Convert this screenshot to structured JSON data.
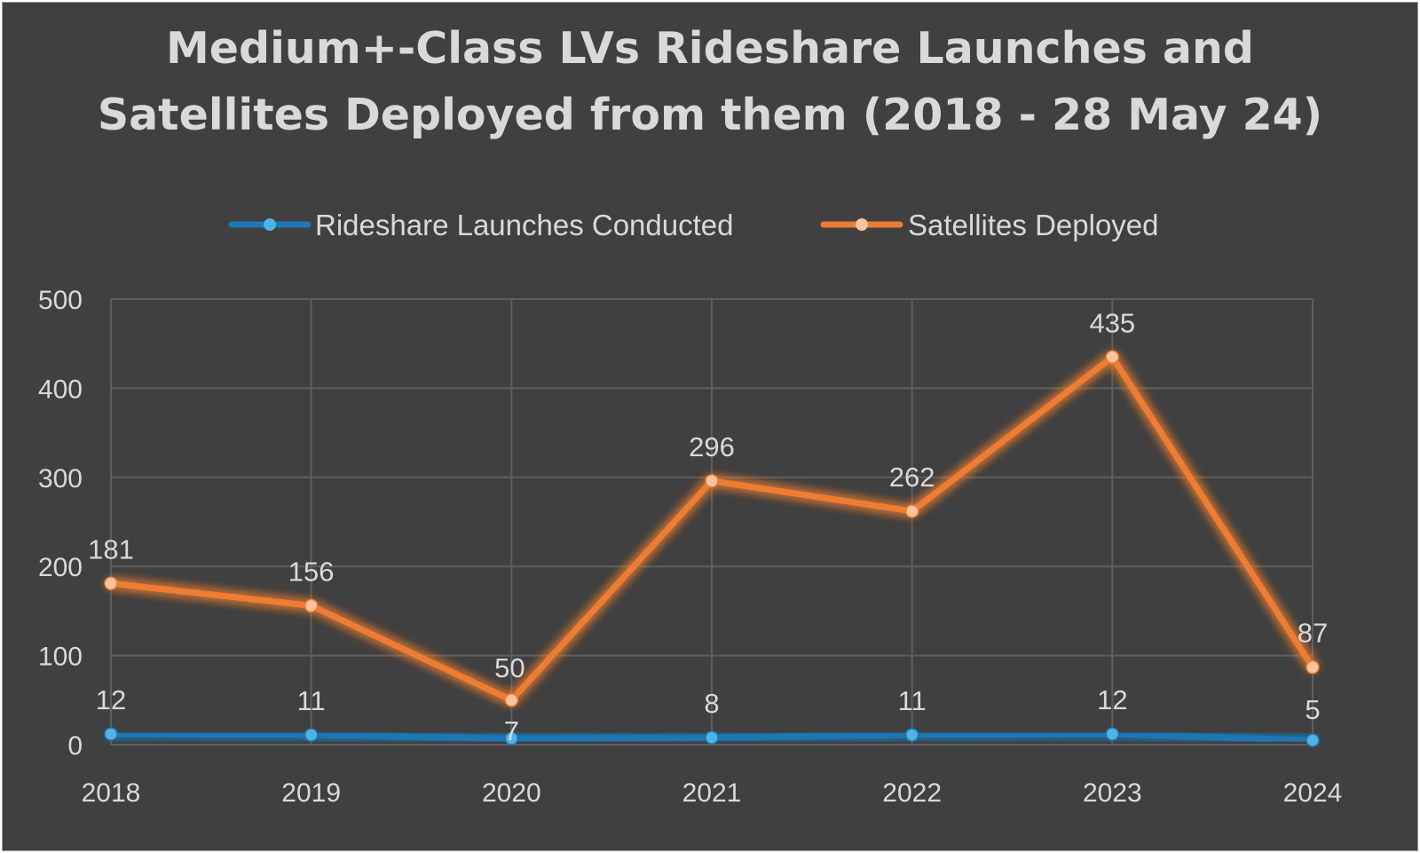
{
  "chart_data": {
    "type": "line",
    "title_line1": "Medium+-Class LVs Rideshare Launches and",
    "title_line2": "Satellites Deployed from them (2018 - 28 May 24)",
    "categories": [
      "2018",
      "2019",
      "2020",
      "2021",
      "2022",
      "2023",
      "2024"
    ],
    "series": [
      {
        "name": "Rideshare Launches Conducted",
        "color": "#1f77b4",
        "marker": "#4fb3e8",
        "values": [
          12,
          11,
          7,
          8,
          11,
          12,
          5
        ]
      },
      {
        "name": "Satellites Deployed",
        "color": "#ed7d31",
        "marker": "#f8c49f",
        "values": [
          181,
          156,
          50,
          296,
          262,
          435,
          87
        ]
      }
    ],
    "ylim": [
      0,
      500
    ],
    "yticks": [
      0,
      100,
      200,
      300,
      400,
      500
    ],
    "grid": true,
    "legend_position": "top",
    "data_labels": true,
    "background": "#404040"
  }
}
